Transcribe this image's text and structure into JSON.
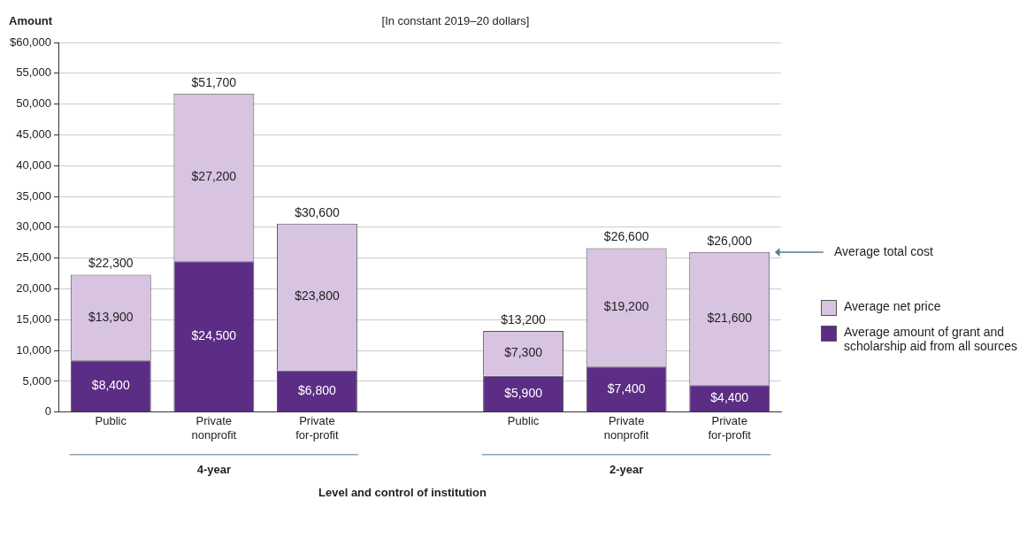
{
  "chart_data": {
    "type": "bar",
    "stacked": true,
    "subtitle": "[In constant 2019–20 dollars]",
    "ylabel": "Amount",
    "xlabel": "Level and control of institution",
    "categories": [
      "Public",
      "Private nonprofit",
      "Private for-profit",
      null,
      "Public",
      "Private nonprofit",
      "Private for-profit"
    ],
    "series": [
      {
        "name": "Average amount of grant and scholarship aid from all sources",
        "color": "#5c2d84",
        "values": [
          8400,
          24500,
          6800,
          null,
          5900,
          7400,
          4400
        ],
        "value_labels": [
          "$8,400",
          "$24,500",
          "$6,800",
          null,
          "$5,900",
          "$7,400",
          "$4,400"
        ]
      },
      {
        "name": "Average net price",
        "color": "#d8c3e1",
        "values": [
          13900,
          27200,
          23800,
          null,
          7300,
          19200,
          21600
        ],
        "value_labels": [
          "$13,900",
          "$27,200",
          "$23,800",
          null,
          "$7,300",
          "$19,200",
          "$21,600"
        ]
      }
    ],
    "totals": [
      "$22,300",
      "$51,700",
      "$30,600",
      null,
      "$13,200",
      "$26,600",
      "$26,000"
    ],
    "ylim": [
      0,
      60000
    ],
    "yticks": [
      0,
      {
        "value": 5000,
        "label": "5,000"
      },
      {
        "value": 10000,
        "label": "10,000"
      },
      {
        "value": 15000,
        "label": "15,000"
      },
      {
        "value": 20000,
        "label": "20,000"
      },
      {
        "value": 25000,
        "label": "25,000"
      },
      {
        "value": 30000,
        "label": "30,000"
      },
      {
        "value": 35000,
        "label": "35,000"
      },
      {
        "value": 40000,
        "label": "40,000"
      },
      {
        "value": 45000,
        "label": "45,000"
      },
      {
        "value": 50000,
        "label": "50,000"
      },
      {
        "value": 55000,
        "label": "55,000"
      },
      {
        "value": 60000,
        "label": "$60,000"
      }
    ],
    "grid": "y",
    "legend": "right",
    "annotations": [
      "4-year",
      "2-year",
      "Average total cost"
    ]
  }
}
